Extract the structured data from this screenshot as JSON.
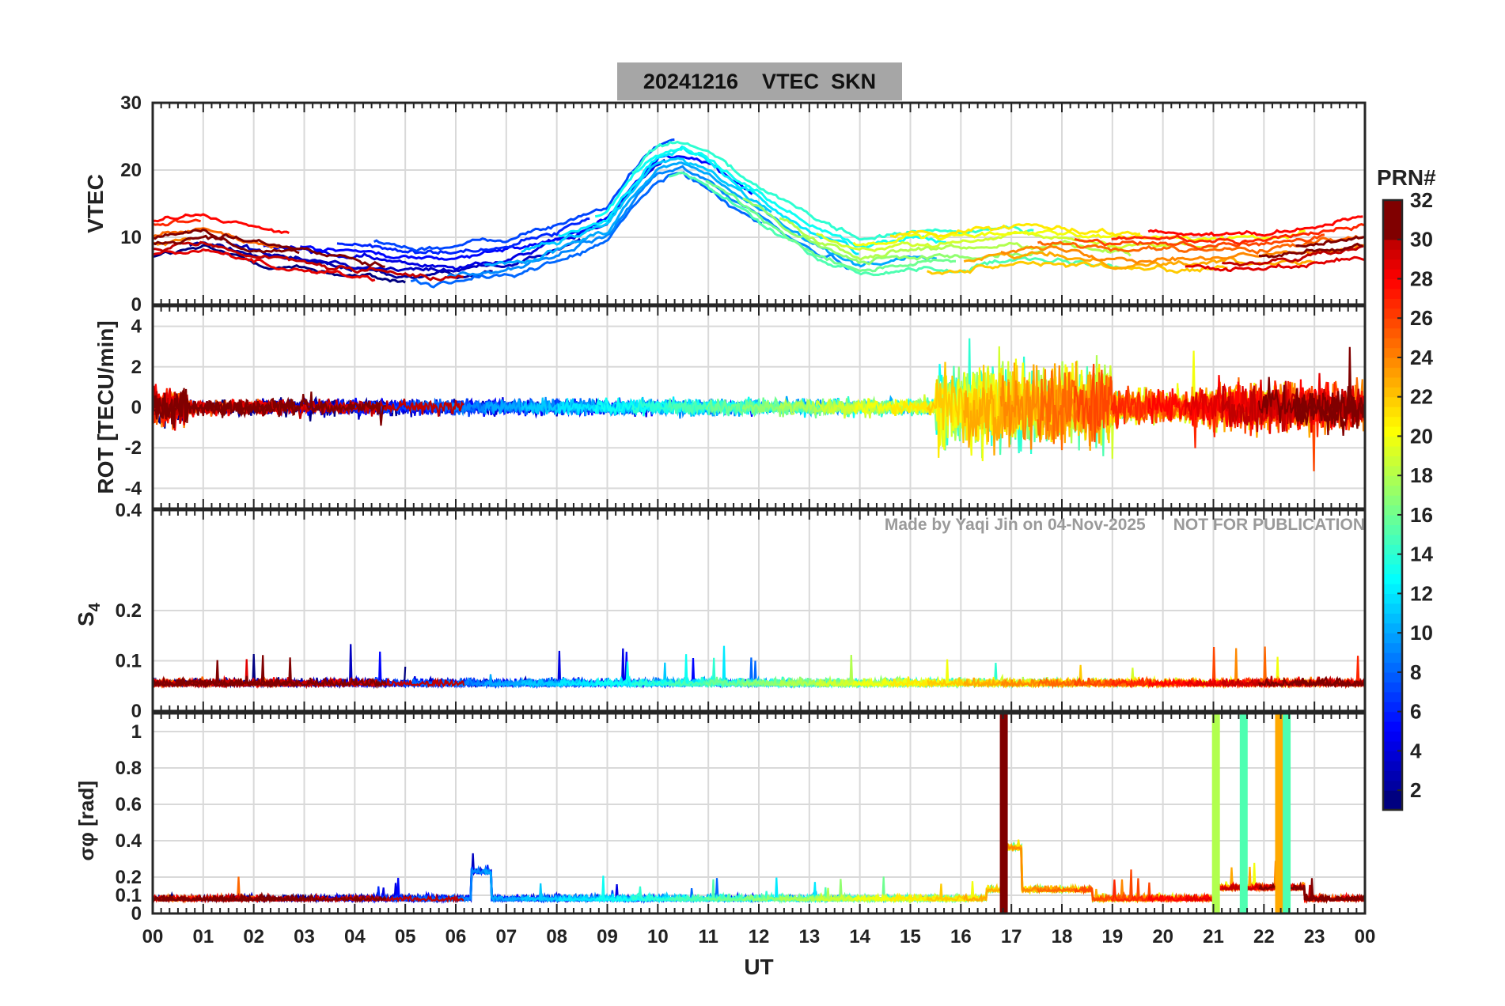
{
  "title": "20241216    VTEC  SKN",
  "watermark": "Made by Yaqi Jin on 04-Nov-2025      NOT FOR PUBLICATION",
  "x_axis": {
    "label": "UT",
    "ticks": [
      "00",
      "01",
      "02",
      "03",
      "04",
      "05",
      "06",
      "07",
      "08",
      "09",
      "10",
      "11",
      "12",
      "13",
      "14",
      "15",
      "16",
      "17",
      "18",
      "19",
      "20",
      "21",
      "22",
      "23",
      "00"
    ]
  },
  "colorbar": {
    "label": "PRN#",
    "ticks": [
      "2",
      "4",
      "6",
      "8",
      "10",
      "12",
      "14",
      "16",
      "18",
      "20",
      "22",
      "24",
      "26",
      "28",
      "30",
      "32"
    ],
    "range": [
      1,
      32
    ],
    "colormap": "jet",
    "dark_end": "#800000",
    "low_end": "#000080"
  },
  "chart_data": [
    {
      "type": "line",
      "panel": "vtec",
      "ylabel": "VTEC",
      "ylim": [
        0,
        30
      ],
      "yticks": [
        "0",
        "10",
        "20",
        "30"
      ],
      "xlim": [
        0,
        24
      ],
      "grid": true,
      "series_note_visible": "many PRN tracks colored by PRN#",
      "approx_envelope": {
        "x": [
          0,
          1,
          2,
          3,
          4,
          5,
          6,
          7,
          8,
          9,
          9.5,
          10,
          10.5,
          11,
          12,
          13,
          14,
          15,
          16,
          17,
          18,
          19,
          20,
          21,
          22,
          23,
          24
        ],
        "y": [
          10,
          11,
          9,
          8,
          7,
          6,
          6,
          7,
          9,
          12,
          17,
          21,
          22,
          20,
          15,
          10,
          7,
          8,
          8,
          9,
          9,
          8,
          8,
          8,
          8,
          9,
          10
        ]
      }
    },
    {
      "type": "line",
      "panel": "rot",
      "ylabel": "ROT [TECU/min]",
      "ylim": [
        -5,
        5
      ],
      "yticks": [
        "-4",
        "-2",
        "0",
        "2",
        "4"
      ],
      "xlim": [
        0,
        24
      ],
      "grid": true
    },
    {
      "type": "line",
      "panel": "s4",
      "ylabel": "S4",
      "ylim": [
        0,
        0.4
      ],
      "yticks": [
        "0",
        "0.1",
        "0.2",
        "0.4"
      ],
      "xlim": [
        0,
        24
      ],
      "grid": true
    },
    {
      "type": "line",
      "panel": "sigma",
      "ylabel": "σφ [rad]",
      "ylim": [
        0,
        1.1
      ],
      "yticks": [
        "0",
        "0.1",
        "0.2",
        "0.4",
        "0.6",
        "0.8",
        "1"
      ],
      "xlim": [
        0,
        24
      ],
      "grid": true
    }
  ]
}
